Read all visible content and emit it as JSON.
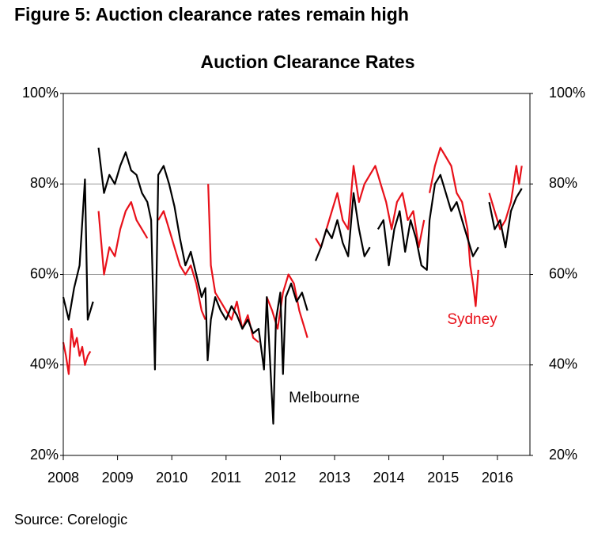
{
  "chart_data": {
    "type": "line",
    "figure_title": "Figure 5: Auction clearance rates remain high",
    "title": "Auction Clearance Rates",
    "source": "Source: Corelogic",
    "xlim": [
      2008,
      2016.6
    ],
    "xticks": [
      2008,
      2009,
      2010,
      2011,
      2012,
      2013,
      2014,
      2015,
      2016
    ],
    "ylim": [
      20,
      100
    ],
    "yticks": [
      {
        "value": 20,
        "label": "20%"
      },
      {
        "value": 40,
        "label": "40%"
      },
      {
        "value": 60,
        "label": "60%"
      },
      {
        "value": 80,
        "label": "80%"
      },
      {
        "value": 100,
        "label": "100%"
      }
    ],
    "y2lim": [
      20,
      100
    ],
    "y2ticks": [
      {
        "value": 20,
        "label": "20%"
      },
      {
        "value": 40,
        "label": "40%"
      },
      {
        "value": 60,
        "label": "60%"
      },
      {
        "value": 80,
        "label": "80%"
      },
      {
        "value": 100,
        "label": "100%"
      }
    ],
    "grid": true,
    "annotations": [
      {
        "text": "Melbourne",
        "color": "#000000"
      },
      {
        "text": "Sydney",
        "color": "#e8111a"
      }
    ],
    "series": [
      {
        "name": "Melbourne",
        "color": "#000000",
        "x": [
          2008.0,
          2008.1,
          2008.2,
          2008.3,
          2008.4,
          2008.45,
          2008.55,
          2008.6,
          2008.65,
          2008.75,
          2008.85,
          2008.95,
          2009.05,
          2009.15,
          2009.25,
          2009.35,
          2009.45,
          2009.55,
          2009.62,
          2009.69,
          2009.75,
          2009.85,
          2009.95,
          2010.05,
          2010.15,
          2010.25,
          2010.35,
          2010.45,
          2010.55,
          2010.62,
          2010.66,
          2010.72,
          2010.8,
          2010.9,
          2011.0,
          2011.1,
          2011.2,
          2011.3,
          2011.4,
          2011.5,
          2011.6,
          2011.7,
          2011.75,
          2011.87,
          2011.92,
          2012.0,
          2012.05,
          2012.1,
          2012.2,
          2012.3,
          2012.4,
          2012.5,
          2012.58,
          2012.65,
          2012.75,
          2012.85,
          2012.95,
          2013.05,
          2013.15,
          2013.25,
          2013.35,
          2013.45,
          2013.55,
          2013.65,
          2013.72,
          2013.8,
          2013.9,
          2014.0,
          2014.1,
          2014.2,
          2014.3,
          2014.4,
          2014.5,
          2014.6,
          2014.7,
          2014.75,
          2014.85,
          2014.95,
          2015.05,
          2015.15,
          2015.25,
          2015.35,
          2015.45,
          2015.55,
          2015.65,
          2015.75,
          2015.85,
          2015.95,
          2016.05,
          2016.15,
          2016.25,
          2016.35,
          2016.45
        ],
        "values": [
          55,
          50,
          57,
          62,
          81,
          50,
          54,
          null,
          88,
          78,
          82,
          80,
          84,
          87,
          83,
          82,
          78,
          76,
          72,
          39,
          82,
          84,
          80,
          75,
          68,
          62,
          65,
          60,
          55,
          57,
          41,
          50,
          55,
          52,
          50,
          53,
          51,
          48,
          50,
          47,
          48,
          39,
          55,
          27,
          50,
          56,
          38,
          55,
          58,
          54,
          56,
          52,
          null,
          63,
          66,
          70,
          68,
          72,
          67,
          64,
          78,
          70,
          64,
          66,
          null,
          70,
          72,
          62,
          70,
          74,
          65,
          72,
          68,
          62,
          61,
          72,
          80,
          82,
          78,
          74,
          76,
          72,
          68,
          64,
          66,
          null,
          76,
          70,
          72,
          66,
          74,
          77,
          79
        ]
      },
      {
        "name": "Sydney",
        "color": "#e8111a",
        "x": [
          2008.0,
          2008.05,
          2008.1,
          2008.15,
          2008.2,
          2008.25,
          2008.3,
          2008.35,
          2008.4,
          2008.45,
          2008.5,
          2008.58,
          2008.65,
          2008.75,
          2008.85,
          2008.95,
          2009.05,
          2009.15,
          2009.25,
          2009.35,
          2009.45,
          2009.55,
          2009.65,
          2009.75,
          2009.85,
          2009.95,
          2010.05,
          2010.15,
          2010.25,
          2010.35,
          2010.45,
          2010.55,
          2010.62,
          2010.65,
          2010.67,
          2010.72,
          2010.8,
          2010.9,
          2011.0,
          2011.1,
          2011.2,
          2011.3,
          2011.4,
          2011.5,
          2011.6,
          2011.68,
          2011.75,
          2011.85,
          2011.95,
          2012.05,
          2012.15,
          2012.25,
          2012.35,
          2012.45,
          2012.5,
          2012.58,
          2012.65,
          2012.75,
          2012.85,
          2012.95,
          2013.05,
          2013.15,
          2013.25,
          2013.35,
          2013.45,
          2013.55,
          2013.65,
          2013.75,
          2013.85,
          2013.95,
          2014.05,
          2014.15,
          2014.25,
          2014.35,
          2014.45,
          2014.55,
          2014.65,
          2014.7,
          2014.75,
          2014.85,
          2014.95,
          2015.05,
          2015.15,
          2015.25,
          2015.35,
          2015.45,
          2015.5,
          2015.55,
          2015.6,
          2015.65,
          2015.75,
          2015.85,
          2015.95,
          2016.05,
          2016.15,
          2016.25,
          2016.35,
          2016.4,
          2016.45
        ],
        "values": [
          45,
          42,
          38,
          48,
          44,
          46,
          42,
          44,
          40,
          42,
          43,
          null,
          74,
          60,
          66,
          64,
          70,
          74,
          76,
          72,
          70,
          68,
          null,
          72,
          74,
          70,
          66,
          62,
          60,
          62,
          58,
          52,
          50,
          null,
          80,
          62,
          56,
          54,
          52,
          50,
          54,
          48,
          51,
          46,
          45,
          null,
          55,
          52,
          48,
          56,
          60,
          58,
          52,
          48,
          46,
          null,
          68,
          66,
          70,
          74,
          78,
          72,
          70,
          84,
          76,
          80,
          82,
          84,
          80,
          76,
          70,
          76,
          78,
          72,
          74,
          66,
          72,
          null,
          78,
          84,
          88,
          86,
          84,
          78,
          76,
          70,
          62,
          58,
          53,
          61,
          null,
          78,
          74,
          70,
          72,
          76,
          84,
          80,
          84
        ]
      }
    ]
  }
}
